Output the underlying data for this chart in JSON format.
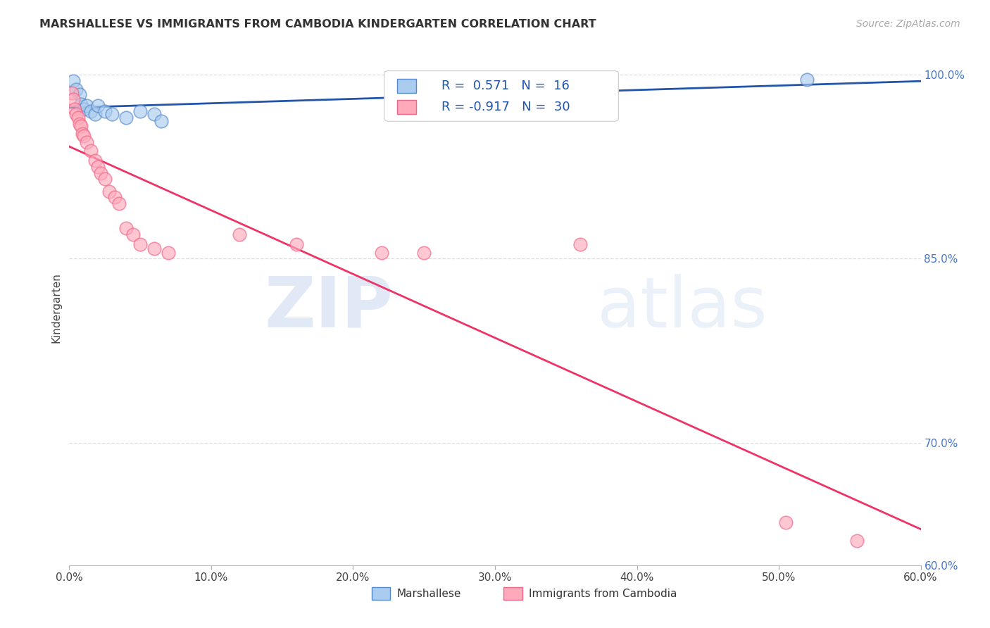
{
  "title": "MARSHALLESE VS IMMIGRANTS FROM CAMBODIA KINDERGARTEN CORRELATION CHART",
  "source": "Source: ZipAtlas.com",
  "ylabel": "Kindergarten",
  "xlim": [
    0.0,
    0.6
  ],
  "ylim": [
    0.6,
    1.02
  ],
  "xticks": [
    0.0,
    0.1,
    0.2,
    0.3,
    0.4,
    0.5,
    0.6
  ],
  "yticks_right_vals": [
    0.6,
    0.7,
    0.85,
    1.0
  ],
  "yticks_right_labels": [
    "60.0%",
    "70.0%",
    "85.0%",
    "100.0%"
  ],
  "blue_R": 0.571,
  "blue_N": 16,
  "pink_R": -0.917,
  "pink_N": 30,
  "blue_color": "#aaccee",
  "pink_color": "#ffaabb",
  "blue_edge_color": "#5588cc",
  "pink_edge_color": "#ee6688",
  "blue_line_color": "#2255aa",
  "pink_line_color": "#ee3366",
  "legend_label_blue": "Marshallese",
  "legend_label_pink": "Immigrants from Cambodia",
  "watermark_zip": "ZIP",
  "watermark_atlas": "atlas",
  "grid_color": "#dddddd",
  "blue_x": [
    0.003,
    0.005,
    0.007,
    0.008,
    0.01,
    0.012,
    0.015,
    0.018,
    0.02,
    0.025,
    0.03,
    0.04,
    0.05,
    0.06,
    0.065,
    0.52
  ],
  "blue_y": [
    0.995,
    0.988,
    0.984,
    0.976,
    0.972,
    0.975,
    0.97,
    0.968,
    0.975,
    0.97,
    0.968,
    0.965,
    0.97,
    0.968,
    0.962,
    0.996
  ],
  "pink_x": [
    0.002,
    0.003,
    0.004,
    0.005,
    0.006,
    0.007,
    0.008,
    0.009,
    0.01,
    0.012,
    0.015,
    0.018,
    0.02,
    0.022,
    0.025,
    0.028,
    0.032,
    0.035,
    0.04,
    0.045,
    0.05,
    0.06,
    0.07,
    0.12,
    0.16,
    0.22,
    0.25,
    0.36,
    0.505,
    0.555
  ],
  "pink_y": [
    0.985,
    0.98,
    0.972,
    0.968,
    0.965,
    0.96,
    0.958,
    0.952,
    0.95,
    0.945,
    0.938,
    0.93,
    0.925,
    0.92,
    0.915,
    0.905,
    0.9,
    0.895,
    0.875,
    0.87,
    0.862,
    0.858,
    0.855,
    0.87,
    0.862,
    0.855,
    0.855,
    0.862,
    0.635,
    0.62
  ]
}
